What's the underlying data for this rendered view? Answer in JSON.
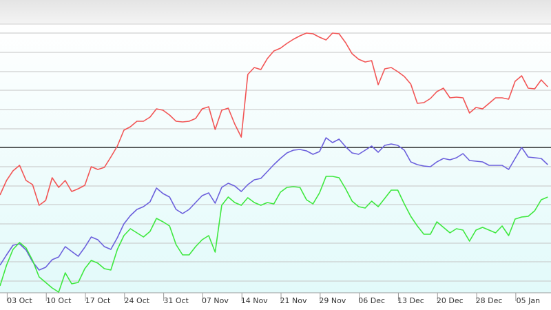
{
  "chart_data": {
    "type": "line",
    "categories": [
      null,
      null,
      null,
      "03  Oct",
      null,
      null,
      null,
      null,
      null,
      "10  Oct",
      null,
      null,
      null,
      null,
      null,
      "17  Oct",
      null,
      null,
      null,
      null,
      null,
      "24  Oct",
      null,
      null,
      null,
      null,
      null,
      "31  Oct",
      null,
      null,
      null,
      null,
      null,
      "07  Nov",
      null,
      null,
      null,
      null,
      null,
      "14  Nov",
      null,
      null,
      null,
      null,
      null,
      "21  Nov",
      null,
      null,
      null,
      null,
      null,
      "29  Nov",
      null,
      null,
      null,
      null,
      null,
      "06  Dec",
      null,
      null,
      null,
      null,
      null,
      "13  Dec",
      null,
      null,
      null,
      null,
      null,
      "20  Dec",
      null,
      null,
      null,
      null,
      null,
      "28  Dec",
      null,
      null,
      null,
      null,
      null,
      "05  Jan",
      null,
      null,
      null
    ],
    "series": [
      {
        "color": "#f25555",
        "values": [
          142,
          163,
          177,
          185,
          163,
          157,
          127,
          134,
          167,
          153,
          163,
          147,
          151,
          156,
          183,
          179,
          182,
          197,
          213,
          236,
          241,
          249,
          249,
          255,
          267,
          265,
          258,
          249,
          248,
          249,
          253,
          267,
          270,
          237,
          265,
          268,
          245,
          226,
          317,
          327,
          324,
          340,
          351,
          355,
          362,
          368,
          373,
          377,
          376,
          371,
          367,
          377,
          376,
          363,
          347,
          339,
          335,
          337,
          302,
          325,
          327,
          321,
          314,
          303,
          275,
          276,
          282,
          292,
          297,
          283,
          284,
          283,
          261,
          269,
          267,
          275,
          283,
          283,
          281,
          307,
          315,
          297,
          296,
          309,
          299
        ]
      },
      {
        "color": "#6b5fdc",
        "values": [
          40,
          55,
          69,
          71,
          62,
          45,
          33,
          37,
          48,
          52,
          67,
          60,
          53,
          66,
          81,
          77,
          67,
          63,
          80,
          100,
          112,
          121,
          125,
          132,
          152,
          144,
          139,
          121,
          115,
          121,
          131,
          141,
          145,
          130,
          153,
          159,
          155,
          147,
          157,
          164,
          166,
          176,
          186,
          195,
          203,
          207,
          208,
          206,
          201,
          205,
          225,
          218,
          223,
          212,
          203,
          201,
          207,
          213,
          204,
          214,
          216,
          214,
          207,
          190,
          186,
          184,
          183,
          190,
          195,
          193,
          196,
          202,
          192,
          191,
          190,
          185,
          185,
          185,
          179,
          195,
          211,
          197,
          196,
          195,
          186
        ]
      },
      {
        "color": "#3ee83e",
        "values": [
          10,
          40,
          63,
          73,
          65,
          47,
          23,
          15,
          7,
          1,
          29,
          13,
          15,
          35,
          47,
          43,
          35,
          33,
          63,
          83,
          93,
          87,
          81,
          89,
          108,
          103,
          97,
          70,
          55,
          55,
          67,
          77,
          83,
          59,
          127,
          139,
          131,
          127,
          138,
          131,
          127,
          131,
          129,
          146,
          153,
          154,
          153,
          135,
          129,
          145,
          169,
          169,
          167,
          151,
          133,
          125,
          123,
          133,
          125,
          137,
          149,
          149,
          129,
          111,
          97,
          85,
          85,
          103,
          95,
          87,
          93,
          91,
          75,
          91,
          95,
          91,
          87,
          97,
          83,
          107,
          110,
          111,
          119,
          135,
          139
        ]
      }
    ],
    "ylim": [
      0,
      390
    ],
    "yticks": [
      17,
      45,
      72,
      100,
      128,
      155,
      183,
      211,
      238,
      266,
      294,
      321,
      349,
      377
    ],
    "reference_line": 211,
    "grid": true
  }
}
